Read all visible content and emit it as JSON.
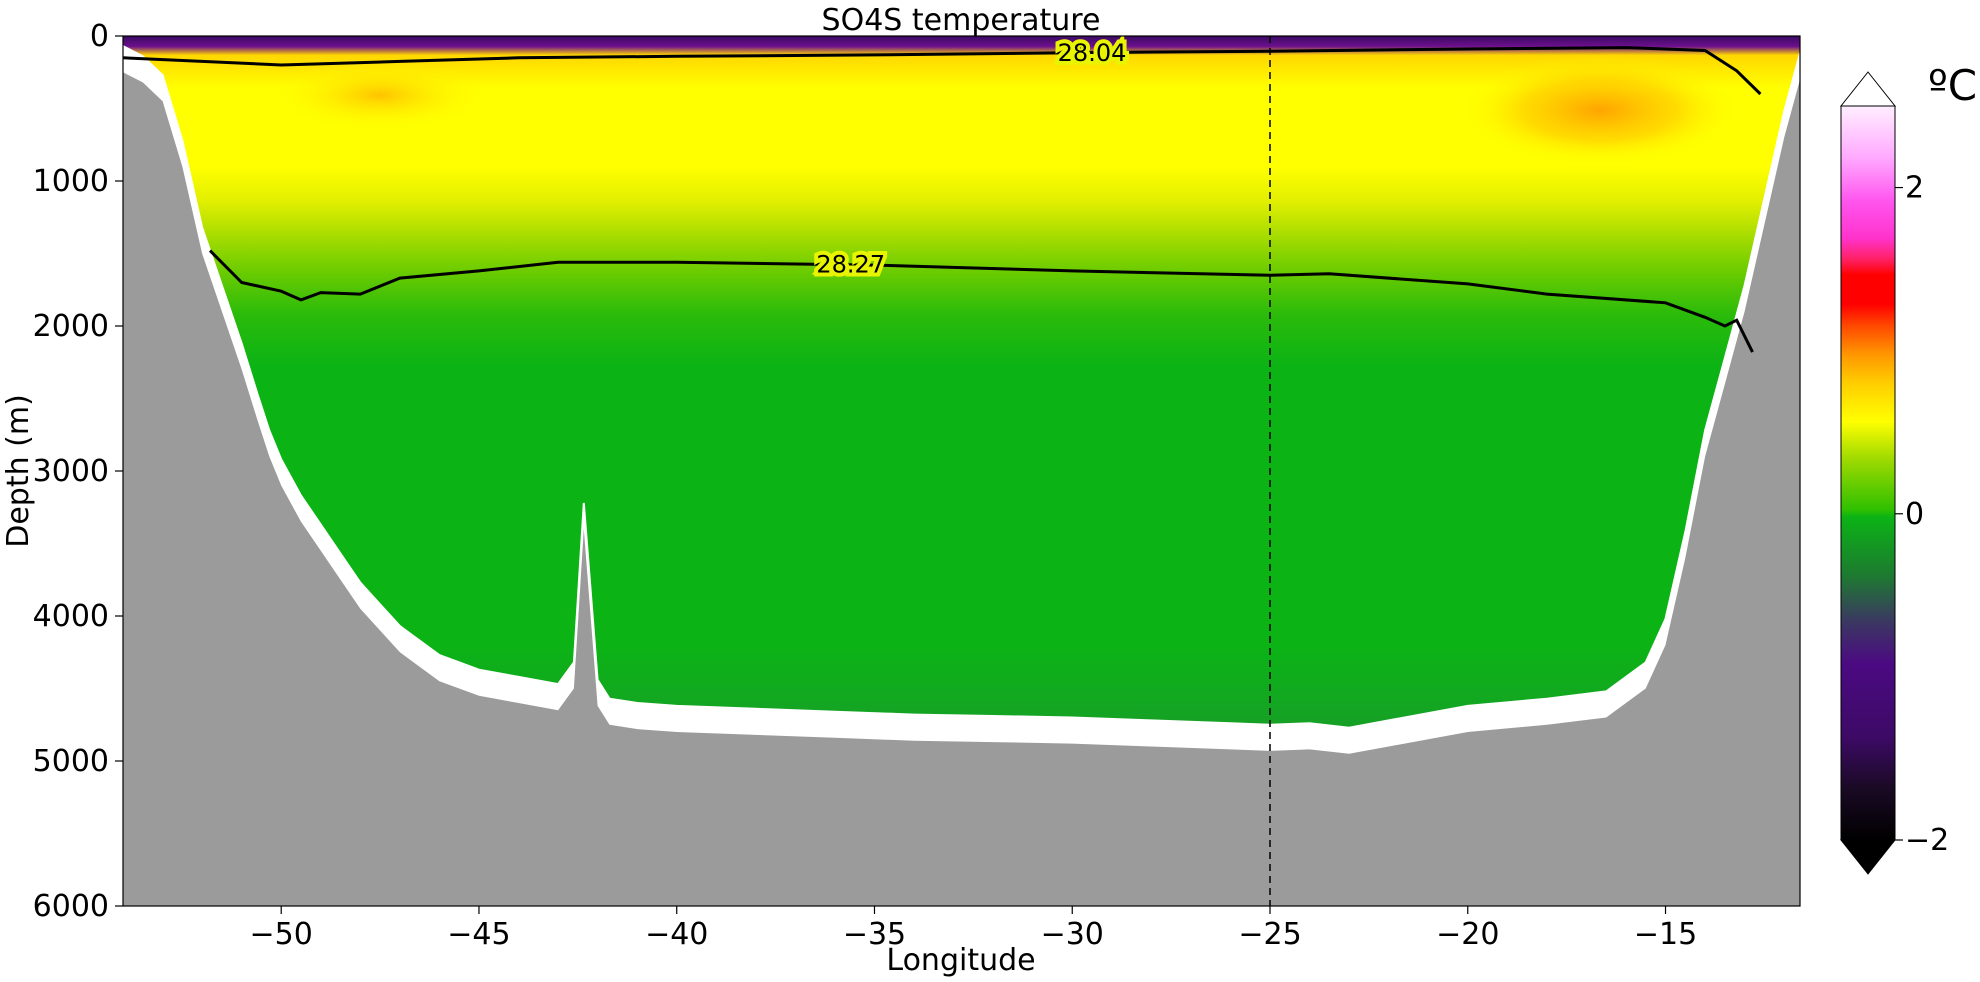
{
  "chart_data": {
    "type": "heatmap",
    "title": "SO4S temperature",
    "xlabel": "Longitude",
    "ylabel": "Depth (m)",
    "xlim": [
      -54,
      -11.6
    ],
    "ylim": [
      6000,
      0
    ],
    "x_ticks": [
      -50,
      -45,
      -40,
      -35,
      -30,
      -25,
      -20,
      -15
    ],
    "x_tick_labels": [
      "−50",
      "−45",
      "−40",
      "−35",
      "−30",
      "−25",
      "−20",
      "−15"
    ],
    "y_ticks": [
      0,
      1000,
      2000,
      3000,
      4000,
      5000,
      6000
    ],
    "y_tick_labels": [
      "0",
      "1000",
      "2000",
      "3000",
      "4000",
      "5000",
      "6000"
    ],
    "colorbar": {
      "unit": "ºC",
      "range": [
        -2,
        2.5
      ],
      "ticks": [
        -2,
        0,
        2
      ],
      "tick_labels": [
        "−2",
        "0",
        "2"
      ],
      "extend": "both"
    },
    "colors": {
      "land": "#9b9b9b",
      "deep_water": "#0bb315",
      "bottom_water": "#1a9a2a",
      "warm_core": "#ffff00",
      "warmest": "#ffa500",
      "surface_cold": "#4b0082",
      "contour": "#000000"
    },
    "reference_line": {
      "longitude": -25,
      "style": "dashed"
    },
    "isopycnals": [
      {
        "label": "28.27",
        "label_position": [
          -35.6,
          1570
        ],
        "points": [
          [
            -51.8,
            1480
          ],
          [
            -51.0,
            1700
          ],
          [
            -50.0,
            1760
          ],
          [
            -49.5,
            1820
          ],
          [
            -49.0,
            1770
          ],
          [
            -48.0,
            1780
          ],
          [
            -47.0,
            1670
          ],
          [
            -45.0,
            1620
          ],
          [
            -43.0,
            1560
          ],
          [
            -40.0,
            1560
          ],
          [
            -35.0,
            1580
          ],
          [
            -30.0,
            1620
          ],
          [
            -25.0,
            1650
          ],
          [
            -23.5,
            1640
          ],
          [
            -20.0,
            1710
          ],
          [
            -18.0,
            1780
          ],
          [
            -15.0,
            1840
          ],
          [
            -14.0,
            1940
          ],
          [
            -13.5,
            2000
          ],
          [
            -13.2,
            1960
          ],
          [
            -12.8,
            2180
          ]
        ]
      },
      {
        "label": "28.04",
        "label_position": [
          -29.5,
          110
        ],
        "points": [
          [
            -54.0,
            150
          ],
          [
            -50.0,
            200
          ],
          [
            -47.0,
            175
          ],
          [
            -44.0,
            150
          ],
          [
            -40.0,
            140
          ],
          [
            -35.0,
            130
          ],
          [
            -30.0,
            115
          ],
          [
            -25.0,
            105
          ],
          [
            -20.0,
            90
          ],
          [
            -16.0,
            80
          ],
          [
            -14.0,
            100
          ],
          [
            -13.2,
            240
          ],
          [
            -12.6,
            400
          ]
        ]
      }
    ],
    "bottom_depth": {
      "longitude": [
        -54.0,
        -53.5,
        -53.0,
        -52.5,
        -52.0,
        -51.5,
        -51.0,
        -50.6,
        -50.3,
        -50.0,
        -49.5,
        -49.0,
        -48.5,
        -48.0,
        -47.5,
        -47.0,
        -46.5,
        -46.0,
        -45.0,
        -44.0,
        -43.0,
        -42.6,
        -42.35,
        -42.0,
        -41.7,
        -41.0,
        -40.0,
        -38.0,
        -36.0,
        -34.0,
        -32.0,
        -30.0,
        -28.0,
        -26.0,
        -25.0,
        -24.0,
        -23.0,
        -22.0,
        -20.0,
        -18.0,
        -16.5,
        -15.5,
        -15.0,
        -14.5,
        -14.0,
        -13.5,
        -13.0,
        -12.5,
        -12.0,
        -11.6
      ],
      "depth": [
        250,
        320,
        450,
        900,
        1500,
        1900,
        2300,
        2650,
        2900,
        3100,
        3350,
        3550,
        3750,
        3950,
        4100,
        4250,
        4350,
        4450,
        4550,
        4600,
        4650,
        4500,
        3400,
        4620,
        4750,
        4780,
        4800,
        4820,
        4840,
        4860,
        4870,
        4880,
        4900,
        4920,
        4930,
        4920,
        4950,
        4900,
        4800,
        4750,
        4700,
        4500,
        4200,
        3600,
        2900,
        2400,
        1900,
        1300,
        700,
        300
      ]
    }
  }
}
